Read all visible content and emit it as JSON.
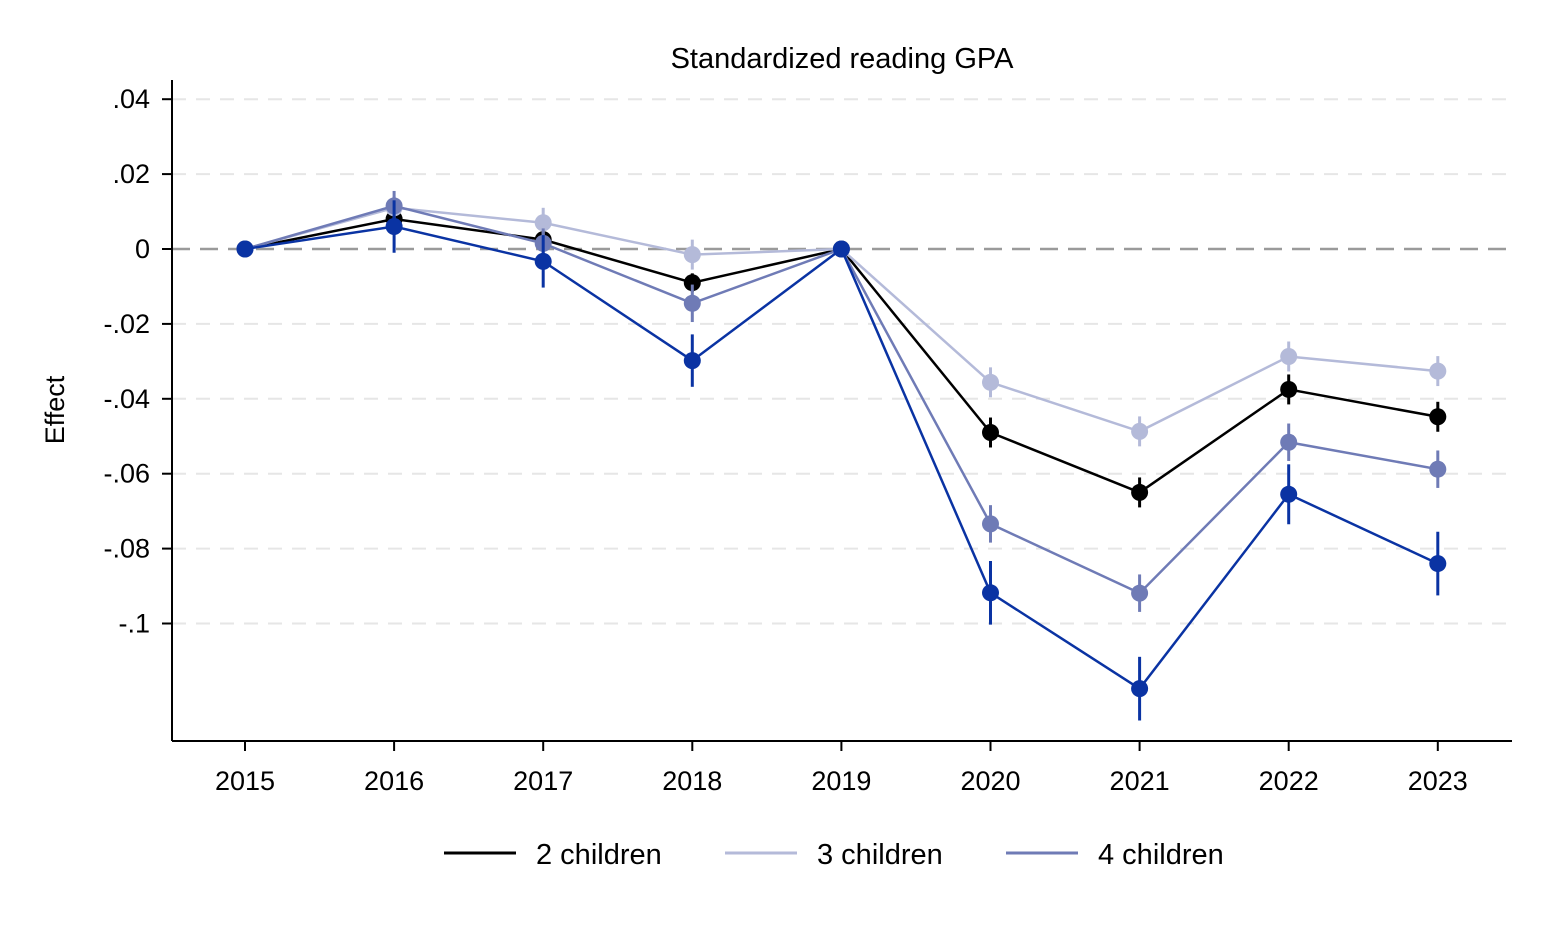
{
  "chart_data": {
    "type": "line",
    "title": "Standardized reading GPA",
    "xlabel": "",
    "ylabel": "Effect",
    "x": [
      2015,
      2016,
      2017,
      2018,
      2019,
      2020,
      2021,
      2022,
      2023
    ],
    "ylim": [
      -0.131,
      0.045
    ],
    "y_ticks": [
      0.04,
      0.02,
      0,
      -0.02,
      -0.04,
      -0.06,
      -0.08,
      -0.1
    ],
    "y_tick_labels": [
      ".04",
      ".02",
      "0",
      "-.02",
      "-.04",
      "-.06",
      "-.08",
      "-.1"
    ],
    "x_tick_labels": [
      "2015",
      "2016",
      "2017",
      "2018",
      "2019",
      "2020",
      "2021",
      "2022",
      "2023"
    ],
    "reference_line_y": 0,
    "grid": "horizontal dashed",
    "legend_position": "bottom",
    "series": [
      {
        "name": "2 children",
        "color": "#000000",
        "values": [
          0,
          0.008,
          0.0025,
          -0.009,
          0,
          -0.049,
          -0.065,
          -0.0375,
          -0.0448
        ],
        "ci_low": [
          0,
          0.005,
          0.0005,
          -0.0115,
          0,
          -0.053,
          -0.069,
          -0.0415,
          -0.0488
        ],
        "ci_high": [
          0,
          0.011,
          0.0045,
          -0.0065,
          0,
          -0.045,
          -0.061,
          -0.0335,
          -0.0408
        ]
      },
      {
        "name": "3 children",
        "color": "#b4bad9",
        "values": [
          0,
          0.011,
          0.007,
          -0.0015,
          0,
          -0.0356,
          -0.0487,
          -0.0287,
          -0.0326
        ],
        "ci_low": [
          0,
          0.008,
          0.003,
          -0.0055,
          0,
          -0.0396,
          -0.0527,
          -0.0327,
          -0.0366
        ],
        "ci_high": [
          0,
          0.014,
          0.011,
          0.0025,
          0,
          -0.0316,
          -0.0447,
          -0.0247,
          -0.0286
        ]
      },
      {
        "name": "4 children",
        "color": "#6f7bb6",
        "values": [
          0,
          0.0115,
          0.0015,
          -0.0145,
          0,
          -0.0734,
          -0.0919,
          -0.0516,
          -0.0588
        ],
        "ci_low": [
          0,
          0.0075,
          -0.0025,
          -0.0195,
          0,
          -0.0784,
          -0.0969,
          -0.0566,
          -0.0638
        ],
        "ci_high": [
          0,
          0.0155,
          0.0055,
          -0.0095,
          0,
          -0.0684,
          -0.0869,
          -0.0466,
          -0.0538
        ]
      },
      {
        "name": "",
        "color": "#0a33a3",
        "values": [
          0,
          0.006,
          -0.0033,
          -0.0298,
          0,
          -0.0918,
          -0.1174,
          -0.0655,
          -0.084
        ],
        "ci_low": [
          0,
          -0.001,
          -0.0103,
          -0.0368,
          0,
          -0.1003,
          -0.1259,
          -0.0735,
          -0.0925
        ],
        "ci_high": [
          0,
          0.013,
          0.0037,
          -0.0228,
          0,
          -0.0833,
          -0.1089,
          -0.0575,
          -0.0755
        ]
      }
    ],
    "legend": [
      "2 children",
      "3 children",
      "4 children"
    ]
  }
}
